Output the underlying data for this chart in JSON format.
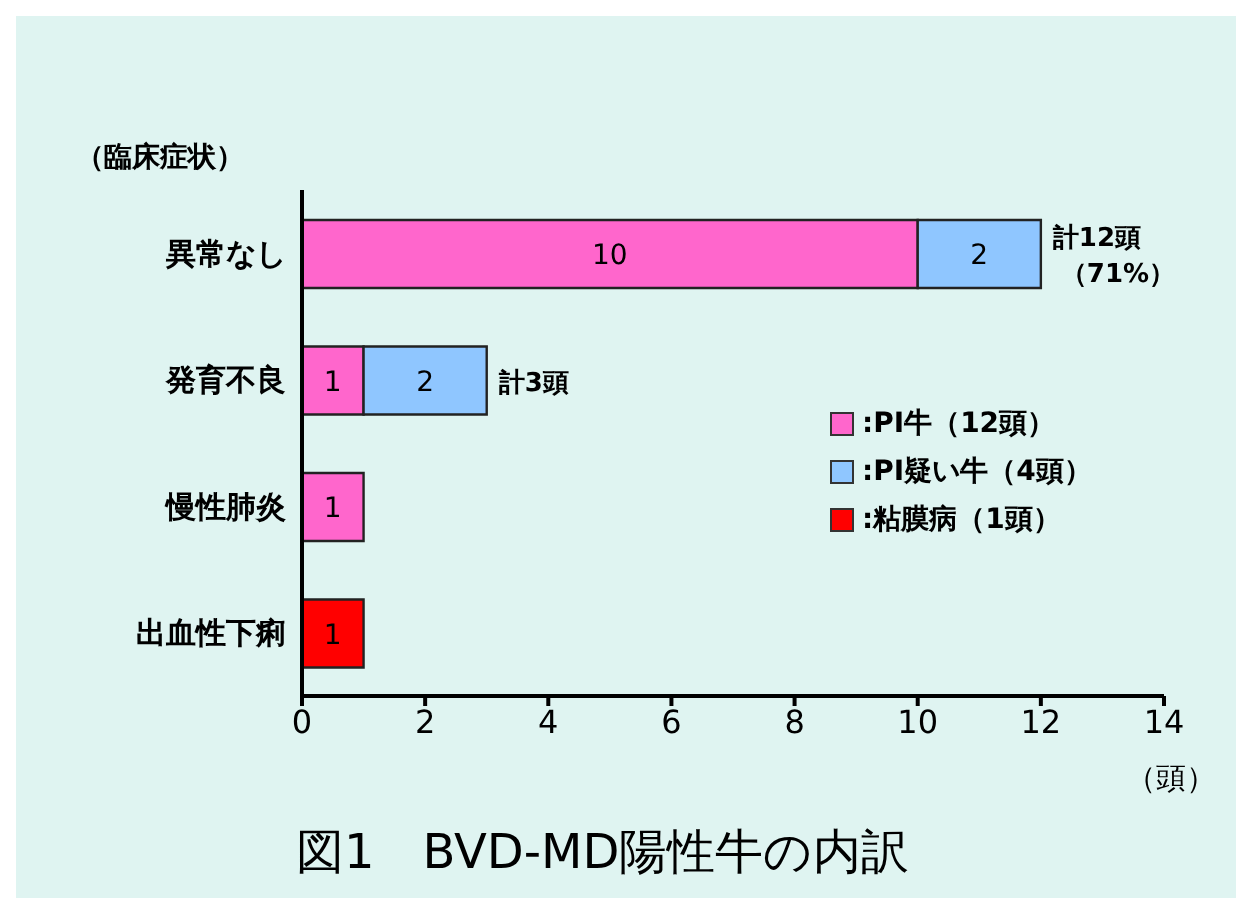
{
  "chart_data": {
    "type": "bar",
    "orientation": "horizontal",
    "stacked": true,
    "title": "図1　BVD-MD陽性牛の内訳",
    "ylabel": "（臨床症状）",
    "xlabel": "（頭）",
    "categories": [
      "異常なし",
      "発育不良",
      "慢性肺炎",
      "出血性下痢"
    ],
    "series": [
      {
        "name": ":PI牛（12頭）",
        "color": "#ff66cc",
        "values": [
          10,
          1,
          1,
          null
        ]
      },
      {
        "name": ":PI疑い牛（4頭）",
        "color": "#8fc6ff",
        "values": [
          2,
          2,
          null,
          null
        ]
      },
      {
        "name": ":粘膜病（1頭）",
        "color": "#ff0000",
        "values": [
          null,
          null,
          null,
          1
        ]
      }
    ],
    "xlim": [
      0,
      14
    ],
    "xticks": [
      0,
      2,
      4,
      6,
      8,
      10,
      12,
      14
    ],
    "data_labels": true,
    "totals": [
      "計12頭（71%）",
      "計3頭",
      null,
      null
    ],
    "legend": "right",
    "grid": false
  }
}
